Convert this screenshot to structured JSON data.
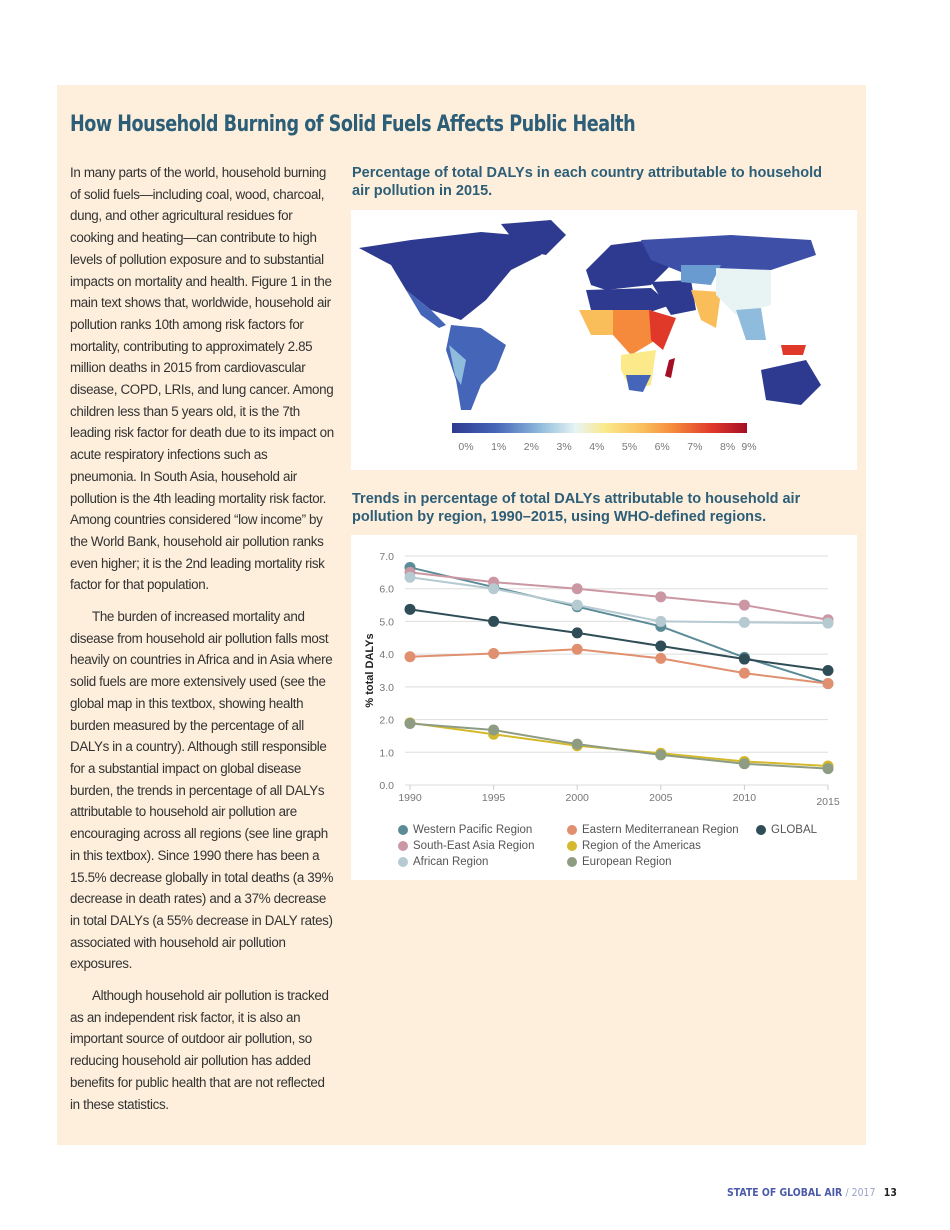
{
  "title": "How Household Burning of Solid Fuels Affects Public Health",
  "paragraphs": [
    "In many parts of the world, household burning of solid fuels—including coal, wood, charcoal, dung, and other agricultural residues for cooking and heating—can contribute to high levels of pollution exposure and to substantial impacts on mortality and health. Figure 1 in the main text shows that, worldwide, household air pollution ranks 10th among risk factors for mortality, contributing to approximately 2.85 million deaths in 2015 from cardiovascular disease, COPD, LRIs, and lung cancer. Among children less than 5 years old, it is the 7th leading risk factor for death due to its impact on acute respiratory infections such as pneumonia. In South Asia, household air pollution is the 4th leading mortality risk factor. Among countries considered “low income” by the World Bank, household air pollution ranks even higher; it is the 2nd leading mortality risk factor for that population.",
    "The burden of increased mortality and disease from household air pollution falls most heavily on countries in Africa and in Asia where solid fuels are more extensively used (see the global map in this textbox, showing health burden measured by the percentage of all DALYs in a country). Although still responsible for a substantial impact on global disease burden, the trends in percentage of all DALYs attributable to household air pollution are encouraging across all regions (see line graph in this textbox). Since 1990 there has been a 15.5% decrease globally in total deaths (a 39% decrease in death rates) and a 37% decrease in total DALYs (a 55% decrease in DALY rates) associated with household air pollution exposures.",
    "Although household air pollution is tracked as an independent risk factor, it is also an important source of outdoor air pollution, so reducing household air pollution has added benefits for public health that are not reflected in these statistics."
  ],
  "map": {
    "title": "Percentage of total DALYs in each country attributable to household air pollution in 2015.",
    "scale_labels": [
      "0%",
      "1%",
      "2%",
      "3%",
      "4%",
      "5%",
      "6%",
      "7%",
      "8%",
      "9%"
    ],
    "scale_colors": [
      "#2e3a8f",
      "#4565b8",
      "#8fbcdc",
      "#e8f4f4",
      "#fbe98a",
      "#f9bd5a",
      "#f58a3c",
      "#e0392a",
      "#a50f25"
    ]
  },
  "chart_data": {
    "type": "line",
    "title": "Trends in percentage of total DALYs attributable to household air pollution by region, 1990–2015, using WHO-defined regions.",
    "xlabel": "",
    "ylabel": "% total DALYs",
    "x": [
      1990,
      1995,
      2000,
      2005,
      2010,
      2015
    ],
    "ylim": [
      0,
      7
    ],
    "yticks": [
      "0.0",
      "1.0",
      "2.0",
      "3.0",
      "4.0",
      "5.0",
      "6.0",
      "7.0"
    ],
    "grid": true,
    "legend": "bottom",
    "series": [
      {
        "name": "Western Pacific Region",
        "color": "#5b8b96",
        "values": [
          6.65,
          6.05,
          5.45,
          4.85,
          3.9,
          3.1
        ]
      },
      {
        "name": "South-East Asia Region",
        "color": "#cb97a3",
        "values": [
          6.5,
          6.2,
          6.0,
          5.75,
          5.5,
          5.05
        ]
      },
      {
        "name": "African Region",
        "color": "#b5cad1",
        "values": [
          6.35,
          6.0,
          5.5,
          5.0,
          4.97,
          4.95
        ]
      },
      {
        "name": "Eastern Mediterranean Region",
        "color": "#e0906e",
        "values": [
          3.92,
          4.02,
          4.15,
          3.87,
          3.42,
          3.1
        ]
      },
      {
        "name": "Region of the Americas",
        "color": "#d3b92b",
        "values": [
          1.9,
          1.55,
          1.2,
          0.97,
          0.72,
          0.58
        ]
      },
      {
        "name": "European Region",
        "color": "#8d9c83",
        "values": [
          1.88,
          1.68,
          1.25,
          0.92,
          0.65,
          0.5
        ]
      },
      {
        "name": "GLOBAL",
        "color": "#2f4d56",
        "values": [
          5.37,
          5.0,
          4.65,
          4.25,
          3.85,
          3.5
        ]
      }
    ]
  },
  "footer": {
    "publication": "STATE OF GLOBAL AIR",
    "year": "/ 2017",
    "page": "13"
  }
}
